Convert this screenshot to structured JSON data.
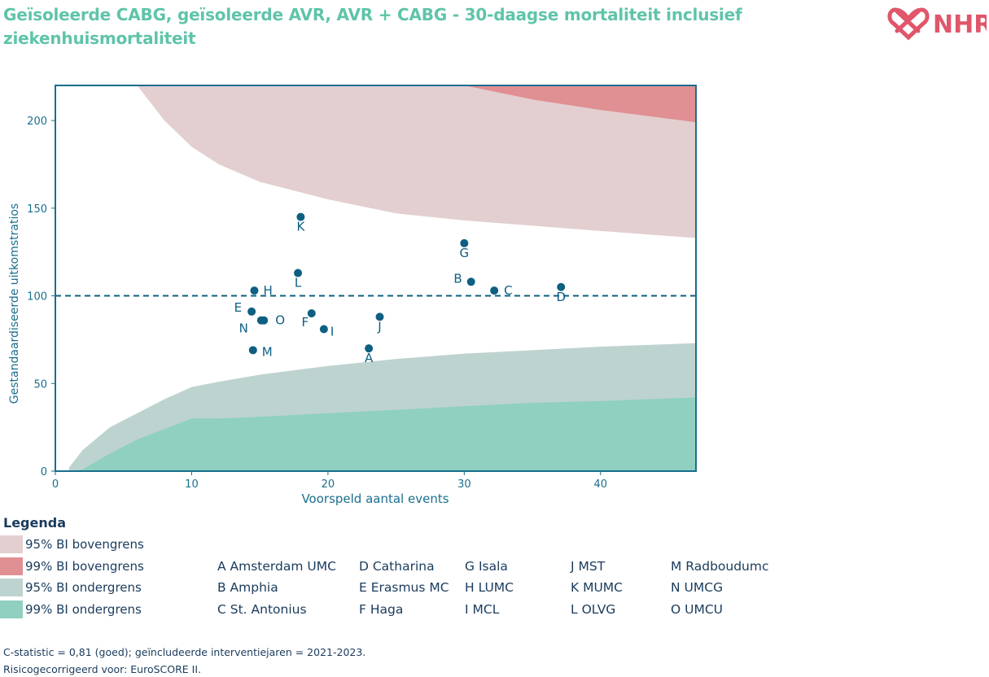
{
  "title": "Geïsoleerde CABG, geïsoleerde AVR, AVR + CABG - 30-daagse mortaliteit inclusief ziekenhuismortaliteit",
  "logo": {
    "text": "NHR",
    "icon": "heart-knot-logo",
    "color": "#e0566a"
  },
  "chart_data": {
    "type": "scatter",
    "xlabel": "Voorspeld aantal events",
    "ylabel": "Gestandaardiseerde uitkomstratios",
    "xlim": [
      0,
      47
    ],
    "ylim": [
      0,
      220
    ],
    "xticks": [
      0,
      10,
      20,
      30,
      40
    ],
    "yticks": [
      0,
      50,
      100,
      150,
      200
    ],
    "reference_line": 100,
    "grid": false,
    "colors": {
      "point": "#0e5f82",
      "axis": "#1a6e8e",
      "upper95": "#e3cfd0",
      "upper99": "#e08f93",
      "lower95": "#bdd3cf",
      "lower99": "#8fd0c0"
    },
    "bands": {
      "x": [
        1,
        2,
        4,
        6,
        8,
        10,
        12,
        15,
        20,
        25,
        30,
        35,
        40,
        47
      ],
      "upper95": [
        null,
        null,
        null,
        220,
        200,
        185,
        175,
        165,
        155,
        147,
        143,
        140,
        137,
        133
      ],
      "upper99": [
        null,
        null,
        null,
        null,
        null,
        null,
        null,
        null,
        null,
        225,
        220,
        212,
        206,
        199
      ],
      "lower95": [
        2,
        12,
        25,
        33,
        41,
        48,
        51,
        55,
        60,
        64,
        67,
        69,
        71,
        73
      ],
      "lower99": [
        0,
        1,
        10,
        18,
        24,
        30,
        30,
        31,
        33,
        35,
        37,
        39,
        40,
        42
      ]
    },
    "points": [
      {
        "label": "A",
        "x": 23,
        "y": 70
      },
      {
        "label": "B",
        "x": 30.5,
        "y": 108
      },
      {
        "label": "C",
        "x": 32.2,
        "y": 103
      },
      {
        "label": "D",
        "x": 37.1,
        "y": 105
      },
      {
        "label": "E",
        "x": 14.4,
        "y": 91
      },
      {
        "label": "F",
        "x": 18.8,
        "y": 90
      },
      {
        "label": "G",
        "x": 30,
        "y": 130
      },
      {
        "label": "H",
        "x": 14.6,
        "y": 103
      },
      {
        "label": "I",
        "x": 19.7,
        "y": 81
      },
      {
        "label": "J",
        "x": 23.8,
        "y": 88
      },
      {
        "label": "K",
        "x": 18,
        "y": 145
      },
      {
        "label": "L",
        "x": 17.8,
        "y": 113
      },
      {
        "label": "M",
        "x": 14.5,
        "y": 69
      },
      {
        "label": "N",
        "x": 15.1,
        "y": 86
      },
      {
        "label": "O",
        "x": 15.3,
        "y": 86
      }
    ]
  },
  "legend": {
    "title": "Legenda",
    "items": [
      {
        "label": "95% BI bovengrens",
        "color": "#e3cfd0"
      },
      {
        "label": "99% BI bovengrens",
        "color": "#e08f93"
      },
      {
        "label": "95% BI ondergrens",
        "color": "#bdd3cf"
      },
      {
        "label": "99% BI ondergrens",
        "color": "#8fd0c0"
      }
    ]
  },
  "hospitals": {
    "col1": [
      "A Amsterdam UMC",
      "B Amphia",
      "C St. Antonius"
    ],
    "col2": [
      "D Catharina",
      "E Erasmus MC",
      "F Haga"
    ],
    "col3": [
      "G Isala",
      "H LUMC",
      "I MCL"
    ],
    "col4": [
      "J MST",
      "K MUMC",
      "L OLVG"
    ],
    "col5": [
      "M Radboudumc",
      "N UMCG",
      "O UMCU"
    ]
  },
  "footnotes": {
    "line1": "C-statistic =  0,81 (goed); geïncludeerde interventiejaren = 2021-2023.",
    "line2": "Risicogecorrigeerd voor: EuroSCORE II."
  }
}
